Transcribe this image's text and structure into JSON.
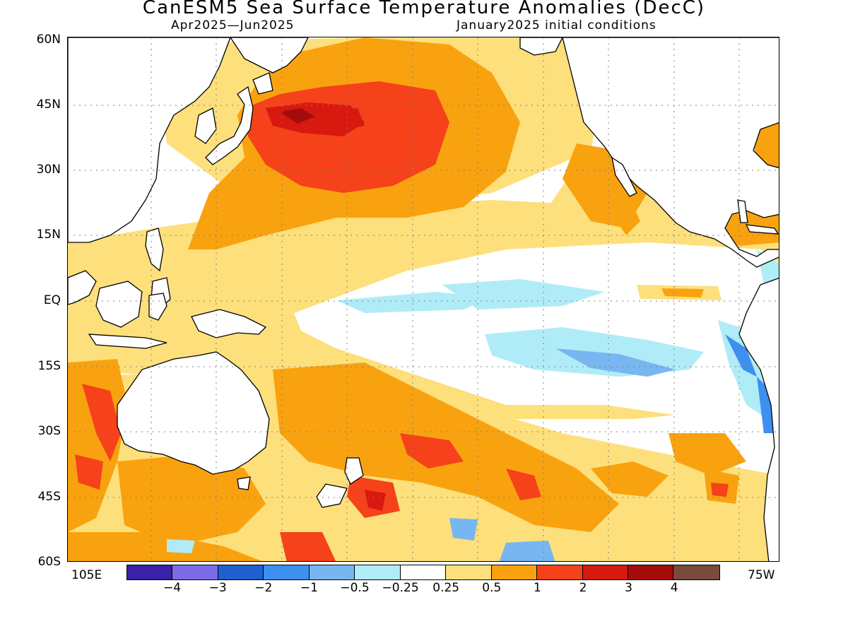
{
  "title": "CanESM5 Sea Surface Temperature Anomalies (DecC)",
  "subtitle_left": "Apr2025—Jun2025",
  "subtitle_right": "January2025 initial conditions",
  "lat_labels": [
    "60N",
    "45N",
    "30N",
    "15N",
    "EQ",
    "15S",
    "30S",
    "45S",
    "60S"
  ],
  "lon_labels": {
    "west": "105E",
    "east": "75W"
  },
  "colorbar": {
    "colors": [
      "#3a22a8",
      "#7b6ce6",
      "#1f5fd0",
      "#3d8ff0",
      "#78b6f2",
      "#b0ecf7",
      "#ffffff",
      "#fde07c",
      "#f9a20f",
      "#f5421a",
      "#d8190f",
      "#a40c0c",
      "#7a4a3d"
    ],
    "labels": [
      "−4",
      "−3",
      "−2",
      "−1",
      "−0.5",
      "−0.25",
      "0.25",
      "0.5",
      "1",
      "2",
      "3",
      "4"
    ]
  }
}
